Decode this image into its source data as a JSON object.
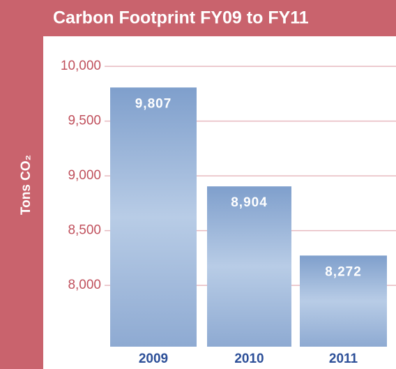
{
  "chart_data": {
    "type": "bar",
    "title": "Carbon Footprint FY09 to FY11",
    "y_label": "Tons CO₂",
    "categories": [
      "2009",
      "2010",
      "2011"
    ],
    "values": [
      9807,
      8904,
      8272
    ],
    "value_labels": [
      "9,807",
      "8,904",
      "8,272"
    ],
    "color": "#9db6d8",
    "ylim": [
      7440,
      10160
    ],
    "yticks": [
      {
        "value": 8000,
        "label": "8,000"
      },
      {
        "value": 8500,
        "label": "8,500"
      },
      {
        "value": 9000,
        "label": "9,000"
      },
      {
        "value": 9500,
        "label": "9,500"
      },
      {
        "value": 10000,
        "label": "10,000"
      }
    ],
    "grid": true
  }
}
